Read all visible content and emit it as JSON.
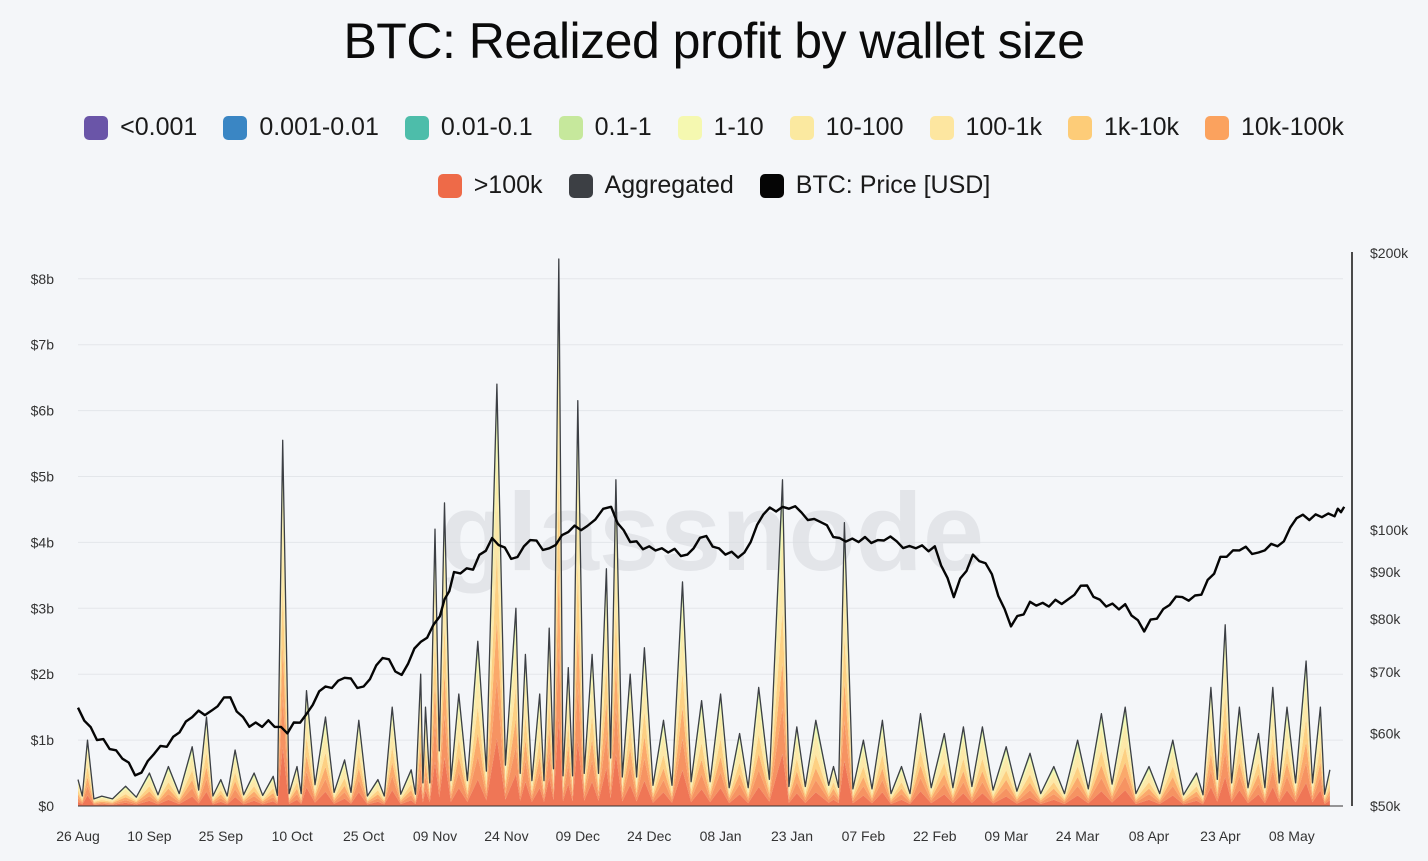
{
  "title": "BTC: Realized profit by wallet size",
  "watermark": "glassnode",
  "legend": [
    {
      "label": "<0.001",
      "color": "#6a55a8"
    },
    {
      "label": "0.001-0.01",
      "color": "#3a86c4"
    },
    {
      "label": "0.01-0.1",
      "color": "#4dbdaa"
    },
    {
      "label": "0.1-1",
      "color": "#c6e89c"
    },
    {
      "label": "1-10",
      "color": "#f5f8b0"
    },
    {
      "label": "10-100",
      "color": "#fbe9a0"
    },
    {
      "label": "100-1k",
      "color": "#fde6a0"
    },
    {
      "label": "1k-10k",
      "color": "#fdcc78"
    },
    {
      "label": "10k-100k",
      "color": "#fba25e"
    },
    {
      "label": ">100k",
      "color": "#ee6a48"
    },
    {
      "label": "Aggregated",
      "color": "#3c3f44"
    },
    {
      "label": "BTC: Price [USD]",
      "color": "#050505"
    }
  ],
  "chart_data": {
    "type": "area",
    "title": "BTC: Realized profit by wallet size",
    "x_ticks": [
      "26 Aug",
      "10 Sep",
      "25 Sep",
      "10 Oct",
      "25 Oct",
      "09 Nov",
      "24 Nov",
      "09 Dec",
      "24 Dec",
      "08 Jan",
      "23 Jan",
      "07 Feb",
      "22 Feb",
      "09 Mar",
      "24 Mar",
      "08 Apr",
      "23 Apr",
      "08 May"
    ],
    "y_left_ticks": [
      "$0",
      "$1b",
      "$2b",
      "$3b",
      "$4b",
      "$5b",
      "$6b",
      "$7b",
      "$8b"
    ],
    "y_left_range": [
      0,
      8.3
    ],
    "y_right_ticks": [
      "$50k",
      "$60k",
      "$70k",
      "$80k",
      "$90k",
      "$100k",
      "$200k"
    ],
    "y_right_scale": "log",
    "y_right_range": [
      50000,
      200000
    ],
    "grid": true,
    "aggregated_peaks": [
      {
        "date": "26 Aug",
        "value": 0.4
      },
      {
        "date": "28 Aug",
        "value": 1.0
      },
      {
        "date": "31 Aug",
        "value": 0.15
      },
      {
        "date": "05 Sep",
        "value": 0.3
      },
      {
        "date": "10 Sep",
        "value": 0.5
      },
      {
        "date": "14 Sep",
        "value": 0.6
      },
      {
        "date": "19 Sep",
        "value": 0.9
      },
      {
        "date": "22 Sep",
        "value": 1.35
      },
      {
        "date": "25 Sep",
        "value": 0.4
      },
      {
        "date": "28 Sep",
        "value": 0.85
      },
      {
        "date": "02 Oct",
        "value": 0.5
      },
      {
        "date": "06 Oct",
        "value": 0.45
      },
      {
        "date": "08 Oct",
        "value": 5.55
      },
      {
        "date": "11 Oct",
        "value": 0.6
      },
      {
        "date": "13 Oct",
        "value": 1.75
      },
      {
        "date": "17 Oct",
        "value": 1.35
      },
      {
        "date": "21 Oct",
        "value": 0.7
      },
      {
        "date": "24 Oct",
        "value": 1.3
      },
      {
        "date": "28 Oct",
        "value": 0.4
      },
      {
        "date": "31 Oct",
        "value": 1.5
      },
      {
        "date": "04 Nov",
        "value": 0.55
      },
      {
        "date": "06 Nov",
        "value": 2.0
      },
      {
        "date": "07 Nov",
        "value": 1.5
      },
      {
        "date": "09 Nov",
        "value": 4.2
      },
      {
        "date": "11 Nov",
        "value": 4.6
      },
      {
        "date": "14 Nov",
        "value": 1.7
      },
      {
        "date": "18 Nov",
        "value": 2.5
      },
      {
        "date": "22 Nov",
        "value": 6.4
      },
      {
        "date": "26 Nov",
        "value": 3.0
      },
      {
        "date": "28 Nov",
        "value": 2.3
      },
      {
        "date": "01 Dec",
        "value": 1.7
      },
      {
        "date": "03 Dec",
        "value": 2.7
      },
      {
        "date": "05 Dec",
        "value": 8.3
      },
      {
        "date": "07 Dec",
        "value": 2.1
      },
      {
        "date": "09 Dec",
        "value": 6.15
      },
      {
        "date": "12 Dec",
        "value": 2.3
      },
      {
        "date": "15 Dec",
        "value": 3.6
      },
      {
        "date": "17 Dec",
        "value": 4.95
      },
      {
        "date": "20 Dec",
        "value": 2.0
      },
      {
        "date": "23 Dec",
        "value": 2.4
      },
      {
        "date": "27 Dec",
        "value": 1.3
      },
      {
        "date": "31 Dec",
        "value": 3.4
      },
      {
        "date": "04 Jan",
        "value": 1.6
      },
      {
        "date": "08 Jan",
        "value": 1.7
      },
      {
        "date": "12 Jan",
        "value": 1.1
      },
      {
        "date": "16 Jan",
        "value": 1.8
      },
      {
        "date": "21 Jan",
        "value": 4.95
      },
      {
        "date": "24 Jan",
        "value": 1.2
      },
      {
        "date": "28 Jan",
        "value": 1.3
      },
      {
        "date": "03 Feb",
        "value": 4.3
      },
      {
        "date": "07 Feb",
        "value": 1.0
      },
      {
        "date": "11 Feb",
        "value": 1.3
      },
      {
        "date": "15 Feb",
        "value": 0.6
      },
      {
        "date": "19 Feb",
        "value": 1.4
      },
      {
        "date": "24 Feb",
        "value": 1.1
      },
      {
        "date": "28 Feb",
        "value": 1.2
      },
      {
        "date": "04 Mar",
        "value": 1.2
      },
      {
        "date": "09 Mar",
        "value": 0.9
      },
      {
        "date": "14 Mar",
        "value": 0.8
      },
      {
        "date": "19 Mar",
        "value": 0.6
      },
      {
        "date": "24 Mar",
        "value": 1.0
      },
      {
        "date": "29 Mar",
        "value": 1.4
      },
      {
        "date": "03 Apr",
        "value": 1.5
      },
      {
        "date": "08 Apr",
        "value": 0.6
      },
      {
        "date": "13 Apr",
        "value": 1.0
      },
      {
        "date": "18 Apr",
        "value": 0.5
      },
      {
        "date": "21 Apr",
        "value": 1.8
      },
      {
        "date": "24 Apr",
        "value": 2.75
      },
      {
        "date": "27 Apr",
        "value": 1.5
      },
      {
        "date": "01 May",
        "value": 1.1
      },
      {
        "date": "04 May",
        "value": 1.8
      },
      {
        "date": "07 May",
        "value": 1.5
      },
      {
        "date": "11 May",
        "value": 2.2
      },
      {
        "date": "14 May",
        "value": 1.5
      },
      {
        "date": "16 May",
        "value": 0.55
      }
    ],
    "btc_price": [
      {
        "date": "26 Aug",
        "value": 64000
      },
      {
        "date": "30 Aug",
        "value": 59000
      },
      {
        "date": "03 Sep",
        "value": 57500
      },
      {
        "date": "07 Sep",
        "value": 54000
      },
      {
        "date": "11 Sep",
        "value": 57000
      },
      {
        "date": "15 Sep",
        "value": 59500
      },
      {
        "date": "19 Sep",
        "value": 62500
      },
      {
        "date": "23 Sep",
        "value": 63500
      },
      {
        "date": "27 Sep",
        "value": 65700
      },
      {
        "date": "01 Oct",
        "value": 61000
      },
      {
        "date": "05 Oct",
        "value": 62000
      },
      {
        "date": "09 Oct",
        "value": 60000
      },
      {
        "date": "13 Oct",
        "value": 63000
      },
      {
        "date": "17 Oct",
        "value": 67500
      },
      {
        "date": "21 Oct",
        "value": 69000
      },
      {
        "date": "25 Oct",
        "value": 67500
      },
      {
        "date": "29 Oct",
        "value": 72500
      },
      {
        "date": "02 Nov",
        "value": 69500
      },
      {
        "date": "06 Nov",
        "value": 75500
      },
      {
        "date": "10 Nov",
        "value": 80500
      },
      {
        "date": "13 Nov",
        "value": 90000
      },
      {
        "date": "17 Nov",
        "value": 90500
      },
      {
        "date": "21 Nov",
        "value": 98000
      },
      {
        "date": "25 Nov",
        "value": 93000
      },
      {
        "date": "29 Nov",
        "value": 97500
      },
      {
        "date": "03 Dec",
        "value": 95500
      },
      {
        "date": "07 Dec",
        "value": 99500
      },
      {
        "date": "11 Dec",
        "value": 101000
      },
      {
        "date": "16 Dec",
        "value": 106000
      },
      {
        "date": "20 Dec",
        "value": 97000
      },
      {
        "date": "24 Dec",
        "value": 96000
      },
      {
        "date": "28 Dec",
        "value": 94500
      },
      {
        "date": "01 Jan",
        "value": 94000
      },
      {
        "date": "05 Jan",
        "value": 98500
      },
      {
        "date": "09 Jan",
        "value": 94000
      },
      {
        "date": "13 Jan",
        "value": 94500
      },
      {
        "date": "17 Jan",
        "value": 104000
      },
      {
        "date": "21 Jan",
        "value": 106000
      },
      {
        "date": "25 Jan",
        "value": 104500
      },
      {
        "date": "29 Jan",
        "value": 102000
      },
      {
        "date": "02 Feb",
        "value": 98000
      },
      {
        "date": "06 Feb",
        "value": 97000
      },
      {
        "date": "10 Feb",
        "value": 97500
      },
      {
        "date": "14 Feb",
        "value": 97200
      },
      {
        "date": "18 Feb",
        "value": 95500
      },
      {
        "date": "22 Feb",
        "value": 96000
      },
      {
        "date": "26 Feb",
        "value": 84500
      },
      {
        "date": "02 Mar",
        "value": 94000
      },
      {
        "date": "06 Mar",
        "value": 89500
      },
      {
        "date": "10 Mar",
        "value": 78500
      },
      {
        "date": "14 Mar",
        "value": 83500
      },
      {
        "date": "18 Mar",
        "value": 82500
      },
      {
        "date": "22 Mar",
        "value": 84000
      },
      {
        "date": "26 Mar",
        "value": 87000
      },
      {
        "date": "30 Mar",
        "value": 82500
      },
      {
        "date": "03 Apr",
        "value": 83000
      },
      {
        "date": "07 Apr",
        "value": 77500
      },
      {
        "date": "11 Apr",
        "value": 82000
      },
      {
        "date": "15 Apr",
        "value": 84500
      },
      {
        "date": "19 Apr",
        "value": 85000
      },
      {
        "date": "23 Apr",
        "value": 93500
      },
      {
        "date": "27 Apr",
        "value": 95000
      },
      {
        "date": "01 May",
        "value": 94500
      },
      {
        "date": "05 May",
        "value": 96000
      },
      {
        "date": "09 May",
        "value": 103000
      },
      {
        "date": "13 May",
        "value": 104000
      },
      {
        "date": "17 May",
        "value": 103500
      },
      {
        "date": "19 May",
        "value": 106000
      }
    ]
  }
}
